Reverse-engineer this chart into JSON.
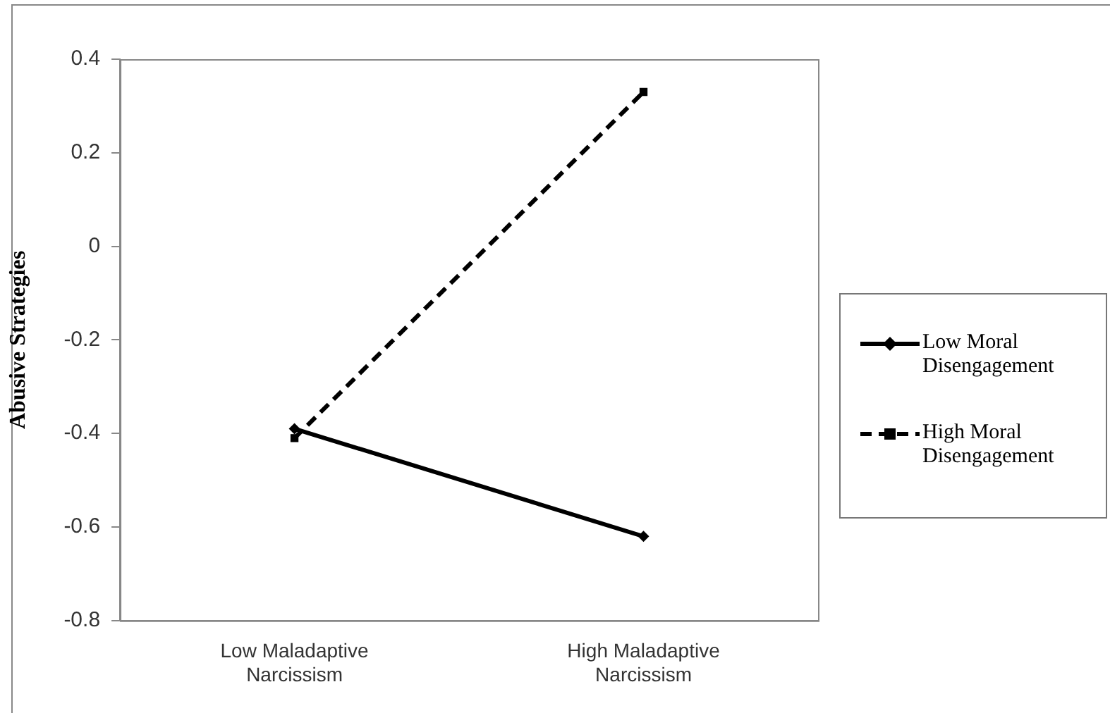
{
  "chart_data": {
    "type": "line",
    "ylabel": "Abusive Strategies",
    "categories": [
      "Low Maladaptive Narcissism",
      "High Maladaptive Narcissism"
    ],
    "series": [
      {
        "name": "Low Moral Disengagement",
        "color": "#000000",
        "values": [
          -0.39,
          -0.62
        ],
        "marker": "diamond",
        "line_style": "solid"
      },
      {
        "name": "High Moral Disengagement",
        "color": "#000000",
        "values": [
          -0.41,
          0.33
        ],
        "marker": "square",
        "line_style": "dashed"
      }
    ],
    "ylim": [
      -0.8,
      0.4
    ],
    "yticks": [
      -0.8,
      -0.6,
      -0.4,
      -0.2,
      0,
      0.2,
      0.4
    ],
    "grid": false,
    "legend": "right"
  }
}
